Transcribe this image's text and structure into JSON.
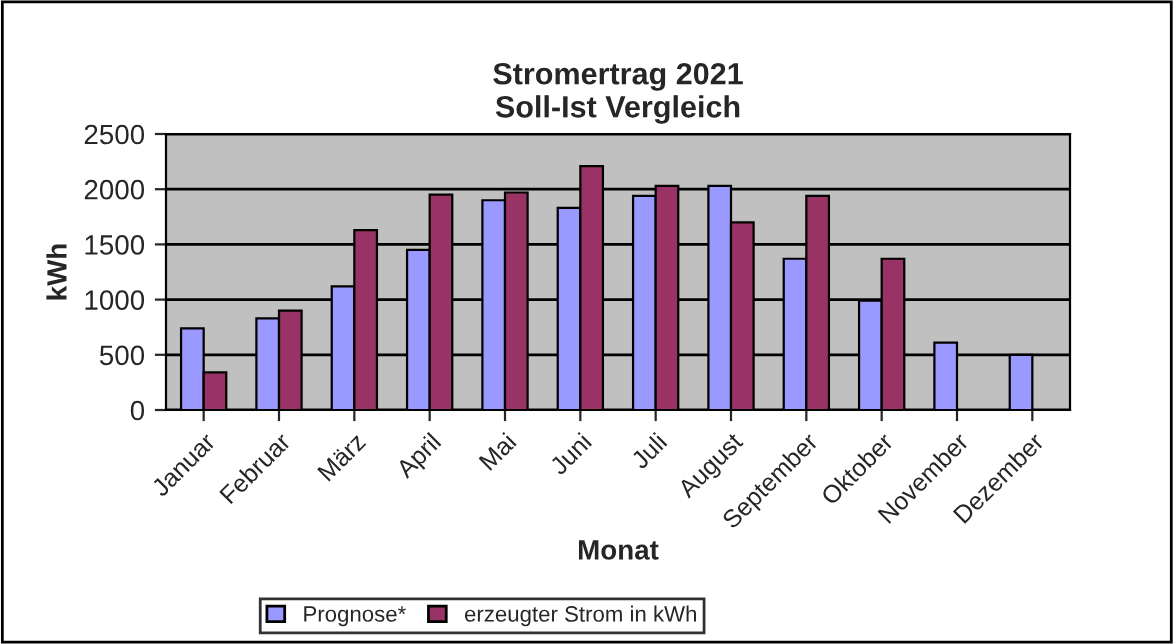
{
  "chart_data": {
    "type": "bar",
    "title": "Stromertrag 2021\nSoll-Ist Vergleich",
    "xlabel": "Monat",
    "ylabel": "kWh",
    "categories": [
      "Januar",
      "Februar",
      "März",
      "April",
      "Mai",
      "Juni",
      "Juli",
      "August",
      "September",
      "Oktober",
      "November",
      "Dezember"
    ],
    "series": [
      {
        "name": "Prognose*",
        "color": "#9999ff",
        "values": [
          740,
          830,
          1120,
          1450,
          1900,
          1830,
          1940,
          2030,
          1370,
          990,
          610,
          500
        ]
      },
      {
        "name": "erzeugter Strom in kWh",
        "color": "#993366",
        "values": [
          340,
          900,
          1630,
          1950,
          1970,
          2210,
          2030,
          1700,
          1940,
          1370,
          null,
          null
        ]
      }
    ],
    "ylim": [
      0,
      2500
    ],
    "yticks": [
      0,
      500,
      1000,
      1500,
      2000,
      2500
    ],
    "grid": "y",
    "legend": "bottom"
  }
}
